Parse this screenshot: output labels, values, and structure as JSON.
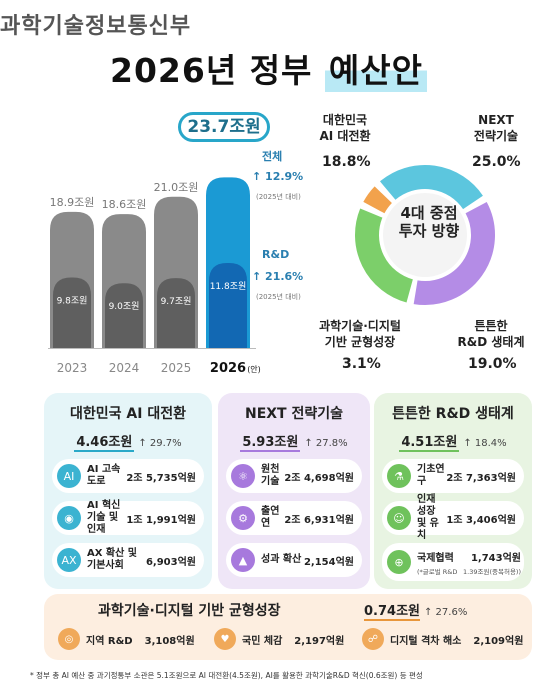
{
  "header": {
    "ministry": "과학기술정보통신부",
    "title_plain": "2026년 정부 ",
    "title_highlight": "예산안"
  },
  "chart_data": {
    "type": "bar",
    "categories": [
      "2023",
      "2024",
      "2025",
      "2026"
    ],
    "series": [
      {
        "values": [
          18.9,
          18.6,
          21.0,
          23.7
        ],
        "labels": [
          "18.9조원",
          "18.6조원",
          "21.0조원",
          "23.7조원"
        ]
      },
      {
        "values": [
          9.8,
          9.0,
          9.7,
          11.8
        ],
        "labels": [
          "9.8조원",
          "9.0조원",
          "9.7조원",
          "11.8조원"
        ]
      }
    ],
    "last_category_suffix": "(안)",
    "annotations": {
      "total_label": "전체",
      "total_growth": "↑ 12.9%",
      "total_basis": "(2025년 대비)",
      "rnd_label": "R&D",
      "rnd_growth": "↑ 21.6%",
      "rnd_basis": "(2025년 대비)"
    },
    "colors": {
      "total_past": "#8a8a8a",
      "rnd_past": "#5f5f5f",
      "total_2026": "#1b9ad4",
      "rnd_2026": "#1268b3"
    }
  },
  "donut": {
    "center_line1": "4대 중점",
    "center_line2": "투자 방향",
    "segments": [
      {
        "label_line1": "대한민국",
        "label_line2": "AI 대전환",
        "pct": "18.8%",
        "value": 18.8,
        "color": "#5cc6de"
      },
      {
        "label_line1": "NEXT",
        "label_line2": "전략기술",
        "pct": "25.0%",
        "value": 25.0,
        "color": "#b48ce6"
      },
      {
        "label_line1": "튼튼한",
        "label_line2": "R&D 생태계",
        "pct": "19.0%",
        "value": 19.0,
        "color": "#7ccf6a"
      },
      {
        "label_line1": "과학기술·디지털",
        "label_line2": "기반 균형성장",
        "pct": "3.1%",
        "value": 3.1,
        "color": "#f2a24c"
      }
    ]
  },
  "panels": [
    {
      "title": "대한민국 AI 대전환",
      "amount": "4.46조원",
      "growth": "↑ 29.7%",
      "items": [
        {
          "icon": "AI",
          "name": "AI 고속도로",
          "amount": "2조 5,735억원"
        },
        {
          "icon": "◉",
          "name": "AI 혁신기술 및 인재",
          "amount": "1조 1,991억원"
        },
        {
          "icon": "AX",
          "name": "AX 확산 및 기본사회",
          "amount": "6,903억원"
        }
      ]
    },
    {
      "title": "NEXT 전략기술",
      "amount": "5.93조원",
      "growth": "↑ 27.8%",
      "items": [
        {
          "icon": "⚛",
          "name": "원천기술",
          "amount": "2조 4,698억원"
        },
        {
          "icon": "⚙",
          "name": "출연연",
          "amount": "2조 6,931억원"
        },
        {
          "icon": "▲",
          "name": "성과 확산",
          "amount": "2,154억원"
        }
      ]
    },
    {
      "title": "튼튼한 R&D 생태계",
      "amount": "4.51조원",
      "growth": "↑ 18.4%",
      "items": [
        {
          "icon": "⚗",
          "name": "기초연구",
          "amount": "2조 7,363억원"
        },
        {
          "icon": "☺",
          "name": "인재 성장 및 유치",
          "amount": "1조 3,406억원"
        },
        {
          "icon": "⊕",
          "name": "국제협력",
          "amount": "1,743억원",
          "note1": "(*글로벌 R&D",
          "note2": "1.39조원(중복허용))"
        }
      ]
    }
  ],
  "bottom": {
    "title": "과학기술·디지털 기반 균형성장",
    "amount": "0.74조원",
    "growth": "↑ 27.6%",
    "items": [
      {
        "icon": "◎",
        "name": "지역 R&D",
        "amount": "3,108억원"
      },
      {
        "icon": "♥",
        "name": "국민 체감",
        "amount": "2,197억원"
      },
      {
        "icon": "☍",
        "name": "디지털 격차 해소",
        "amount": "2,109억원"
      }
    ]
  },
  "footnote": "* 정부 총 AI 예산 중 과기정통부 소관은 5.1조원으로 AI 대전환(4.5조원), AI를 활용한 과학기술R&D 혁신(0.6조원) 등 편성"
}
